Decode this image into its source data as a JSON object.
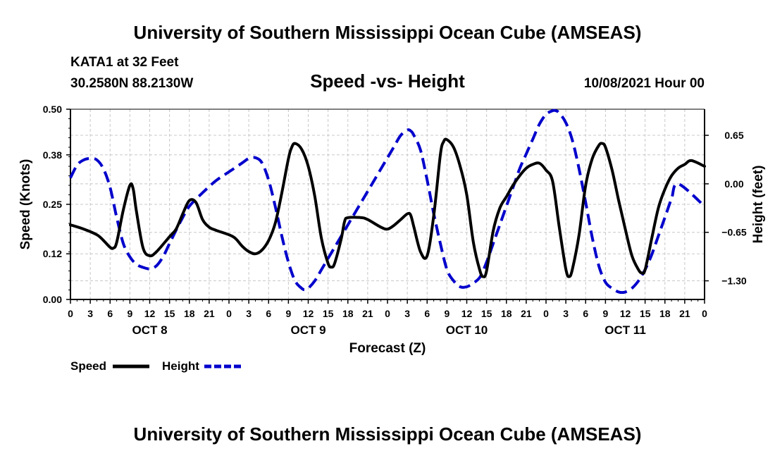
{
  "chart_data": {
    "type": "line",
    "title": "University of Southern Mississippi Ocean Cube (AMSEAS)",
    "footer_title": "University of Southern Mississippi Ocean Cube (AMSEAS)",
    "station": "KATA1 at 32 Feet",
    "coordinates": "30.2580N  88.2130W",
    "subtitle": "Speed -vs- Height",
    "date": "10/08/2021 Hour 00",
    "xlabel": "Forecast (Z)",
    "ylabel_left": "Speed (Knots)",
    "ylabel_right": "Height (feet)",
    "x_range_hours": [
      0,
      96
    ],
    "ylim_left": [
      0,
      0.5
    ],
    "ylim_right": [
      -1.55,
      1.0
    ],
    "left_ticks": [
      0.0,
      0.12,
      0.25,
      0.38,
      0.5
    ],
    "left_tick_labels": [
      "0.00",
      "0.12",
      "0.25",
      "0.38",
      "0.50"
    ],
    "right_ticks": [
      -1.3,
      -0.65,
      0.0,
      0.65
    ],
    "right_tick_labels": [
      "-1.30",
      "-0.65",
      "0.00",
      "0.65"
    ],
    "x_tick_hours": [
      0,
      3,
      6,
      9,
      12,
      15,
      18,
      21,
      24,
      27,
      30,
      33,
      36,
      39,
      42,
      45,
      48,
      51,
      54,
      57,
      60,
      63,
      66,
      69,
      72,
      75,
      78,
      81,
      84,
      87,
      90,
      93,
      96
    ],
    "x_tick_labels": [
      "0",
      "3",
      "6",
      "9",
      "12",
      "15",
      "18",
      "21",
      "0",
      "3",
      "6",
      "9",
      "12",
      "15",
      "18",
      "21",
      "0",
      "3",
      "6",
      "9",
      "12",
      "15",
      "18",
      "21",
      "0",
      "3",
      "6",
      "9",
      "12",
      "15",
      "18",
      "21",
      "0"
    ],
    "day_labels": [
      {
        "hour": 12,
        "label": "OCT 8"
      },
      {
        "hour": 36,
        "label": "OCT 9"
      },
      {
        "hour": 60,
        "label": "OCT 10"
      },
      {
        "hour": 84,
        "label": "OCT 11"
      }
    ],
    "grid": true,
    "legend_position": "bottom-left",
    "series": [
      {
        "name": "Speed",
        "axis": "left",
        "color": "#000000",
        "style": "solid",
        "points": [
          [
            0,
            0.196
          ],
          [
            2,
            0.185
          ],
          [
            4,
            0.17
          ],
          [
            5,
            0.155
          ],
          [
            6,
            0.137
          ],
          [
            6.5,
            0.135
          ],
          [
            7,
            0.15
          ],
          [
            8,
            0.235
          ],
          [
            9,
            0.3
          ],
          [
            9.5,
            0.29
          ],
          [
            10,
            0.23
          ],
          [
            11,
            0.135
          ],
          [
            12,
            0.115
          ],
          [
            13,
            0.125
          ],
          [
            15,
            0.165
          ],
          [
            16,
            0.185
          ],
          [
            17,
            0.225
          ],
          [
            18,
            0.26
          ],
          [
            19,
            0.255
          ],
          [
            20,
            0.21
          ],
          [
            21,
            0.19
          ],
          [
            22,
            0.182
          ],
          [
            24,
            0.17
          ],
          [
            25,
            0.16
          ],
          [
            26,
            0.14
          ],
          [
            27,
            0.126
          ],
          [
            28,
            0.12
          ],
          [
            29,
            0.13
          ],
          [
            30,
            0.155
          ],
          [
            31,
            0.2
          ],
          [
            32,
            0.28
          ],
          [
            33,
            0.37
          ],
          [
            33.5,
            0.4
          ],
          [
            34,
            0.41
          ],
          [
            35,
            0.395
          ],
          [
            36,
            0.35
          ],
          [
            37,
            0.27
          ],
          [
            38,
            0.16
          ],
          [
            39,
            0.095
          ],
          [
            39.5,
            0.085
          ],
          [
            40,
            0.095
          ],
          [
            41,
            0.16
          ],
          [
            41.5,
            0.205
          ],
          [
            42,
            0.215
          ],
          [
            44,
            0.215
          ],
          [
            45,
            0.21
          ],
          [
            47,
            0.19
          ],
          [
            48,
            0.185
          ],
          [
            49,
            0.195
          ],
          [
            50,
            0.21
          ],
          [
            51,
            0.225
          ],
          [
            51.5,
            0.222
          ],
          [
            52,
            0.19
          ],
          [
            53,
            0.125
          ],
          [
            54,
            0.115
          ],
          [
            55,
            0.22
          ],
          [
            56,
            0.38
          ],
          [
            56.5,
            0.415
          ],
          [
            57,
            0.42
          ],
          [
            58,
            0.4
          ],
          [
            59,
            0.35
          ],
          [
            60,
            0.275
          ],
          [
            61,
            0.15
          ],
          [
            62,
            0.075
          ],
          [
            62.5,
            0.06
          ],
          [
            63,
            0.075
          ],
          [
            64,
            0.18
          ],
          [
            65,
            0.24
          ],
          [
            66,
            0.27
          ],
          [
            67,
            0.3
          ],
          [
            68,
            0.325
          ],
          [
            69,
            0.345
          ],
          [
            70,
            0.355
          ],
          [
            71,
            0.358
          ],
          [
            72,
            0.34
          ],
          [
            73,
            0.31
          ],
          [
            74,
            0.19
          ],
          [
            75,
            0.08
          ],
          [
            75.5,
            0.06
          ],
          [
            76,
            0.08
          ],
          [
            77,
            0.17
          ],
          [
            78,
            0.3
          ],
          [
            79,
            0.37
          ],
          [
            80,
            0.405
          ],
          [
            80.5,
            0.41
          ],
          [
            81,
            0.4
          ],
          [
            82,
            0.34
          ],
          [
            83,
            0.26
          ],
          [
            84,
            0.185
          ],
          [
            85,
            0.115
          ],
          [
            86,
            0.078
          ],
          [
            86.5,
            0.07
          ],
          [
            87,
            0.078
          ],
          [
            88,
            0.16
          ],
          [
            89,
            0.24
          ],
          [
            90,
            0.29
          ],
          [
            91,
            0.325
          ],
          [
            92,
            0.345
          ],
          [
            93,
            0.355
          ],
          [
            94,
            0.365
          ],
          [
            96,
            0.35
          ]
        ]
      },
      {
        "name": "Height",
        "axis": "right",
        "color": "#0000cc",
        "style": "dashed",
        "points": [
          [
            0,
            0.08
          ],
          [
            1,
            0.25
          ],
          [
            2,
            0.32
          ],
          [
            3,
            0.34
          ],
          [
            4,
            0.32
          ],
          [
            5,
            0.2
          ],
          [
            6,
            -0.05
          ],
          [
            7,
            -0.45
          ],
          [
            8,
            -0.8
          ],
          [
            9,
            -0.98
          ],
          [
            10,
            -1.08
          ],
          [
            11,
            -1.12
          ],
          [
            12,
            -1.14
          ],
          [
            13,
            -1.1
          ],
          [
            14,
            -0.98
          ],
          [
            15,
            -0.8
          ],
          [
            16,
            -0.62
          ],
          [
            17,
            -0.45
          ],
          [
            18,
            -0.3
          ],
          [
            20,
            -0.12
          ],
          [
            22,
            0.04
          ],
          [
            24,
            0.16
          ],
          [
            26,
            0.28
          ],
          [
            27,
            0.34
          ],
          [
            28,
            0.35
          ],
          [
            29,
            0.28
          ],
          [
            30,
            0.05
          ],
          [
            31,
            -0.3
          ],
          [
            32,
            -0.7
          ],
          [
            33,
            -1.05
          ],
          [
            34,
            -1.3
          ],
          [
            35,
            -1.4
          ],
          [
            35.5,
            -1.42
          ],
          [
            36,
            -1.4
          ],
          [
            37,
            -1.3
          ],
          [
            38,
            -1.15
          ],
          [
            40,
            -0.85
          ],
          [
            42,
            -0.55
          ],
          [
            44,
            -0.25
          ],
          [
            46,
            0.05
          ],
          [
            48,
            0.35
          ],
          [
            49,
            0.5
          ],
          [
            50,
            0.65
          ],
          [
            51,
            0.72
          ],
          [
            51.5,
            0.71
          ],
          [
            52,
            0.65
          ],
          [
            53,
            0.45
          ],
          [
            54,
            0.05
          ],
          [
            55,
            -0.4
          ],
          [
            56,
            -0.8
          ],
          [
            57,
            -1.15
          ],
          [
            58,
            -1.3
          ],
          [
            59,
            -1.38
          ],
          [
            60,
            -1.38
          ],
          [
            61,
            -1.33
          ],
          [
            62,
            -1.25
          ],
          [
            63,
            -1.05
          ],
          [
            64,
            -0.8
          ],
          [
            65,
            -0.55
          ],
          [
            66,
            -0.3
          ],
          [
            67,
            -0.05
          ],
          [
            68,
            0.2
          ],
          [
            69,
            0.4
          ],
          [
            70,
            0.6
          ],
          [
            71,
            0.8
          ],
          [
            72,
            0.93
          ],
          [
            73,
            0.98
          ],
          [
            73.5,
            0.98
          ],
          [
            74,
            0.95
          ],
          [
            75,
            0.82
          ],
          [
            76,
            0.58
          ],
          [
            77,
            0.2
          ],
          [
            78,
            -0.25
          ],
          [
            79,
            -0.72
          ],
          [
            80,
            -1.1
          ],
          [
            81,
            -1.32
          ],
          [
            82,
            -1.4
          ],
          [
            83,
            -1.45
          ],
          [
            84,
            -1.45
          ],
          [
            85,
            -1.4
          ],
          [
            86,
            -1.3
          ],
          [
            87,
            -1.15
          ],
          [
            88,
            -0.95
          ],
          [
            89,
            -0.7
          ],
          [
            90,
            -0.45
          ],
          [
            91,
            -0.2
          ],
          [
            92,
            0.0
          ],
          [
            96,
            -0.3
          ]
        ]
      }
    ]
  },
  "legend": {
    "items": [
      {
        "label": "Speed",
        "color": "#000000",
        "style": "solid"
      },
      {
        "label": "Height",
        "color": "#0000cc",
        "style": "dashed"
      }
    ]
  }
}
